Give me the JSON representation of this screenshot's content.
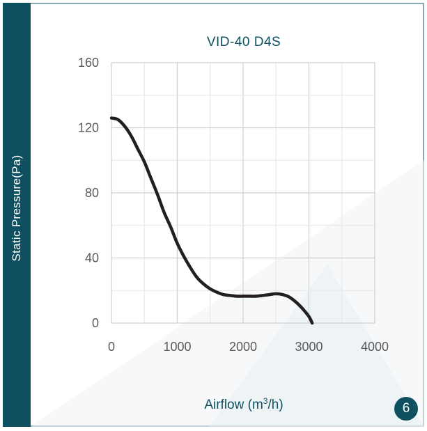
{
  "page_number": "6",
  "colors": {
    "accent": "#0f5060",
    "curve": "#231f20",
    "grid": "#d9d9d9"
  },
  "chart_data": {
    "type": "line",
    "title": "VID-40 D4S",
    "xlabel_text": "Airflow (m",
    "xlabel_sup": "3",
    "xlabel_tail": "/h)",
    "ylabel": "Static Pressure(Pa)",
    "xlim": [
      0,
      4000
    ],
    "ylim": [
      0,
      160
    ],
    "x_ticks": [
      "0",
      "1000",
      "2000",
      "3000",
      "4000"
    ],
    "y_ticks": [
      "0",
      "40",
      "80",
      "120",
      "160"
    ],
    "grid": true,
    "series": [
      {
        "x": [
          0,
          100,
          200,
          300,
          400,
          500,
          600,
          700,
          800,
          900,
          1000,
          1100,
          1200,
          1300,
          1400,
          1500,
          1600,
          1700,
          1800,
          1900,
          2000,
          2100,
          2200,
          2300,
          2400,
          2500,
          2600,
          2700,
          2800,
          2900,
          3000,
          3050
        ],
        "y": [
          126,
          125,
          121,
          115,
          107,
          99,
          89,
          79,
          68,
          59,
          49,
          41,
          34,
          28,
          24,
          21,
          19,
          17.5,
          17,
          16.5,
          16.5,
          16.5,
          16.5,
          17,
          17.5,
          18,
          17.5,
          16,
          13,
          9,
          4,
          0
        ]
      }
    ]
  }
}
